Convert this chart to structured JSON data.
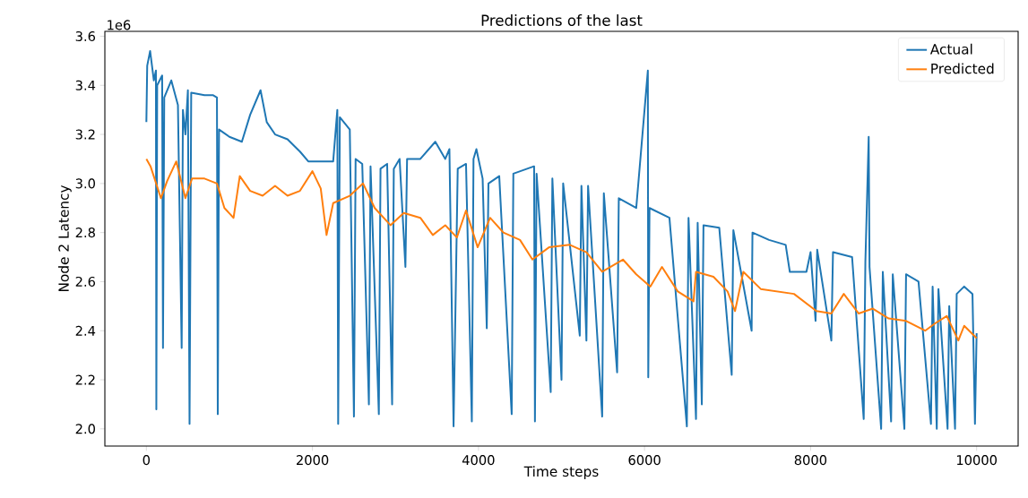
{
  "chart_data": {
    "type": "line",
    "title": "Predictions of the last",
    "xlabel": "Time steps",
    "ylabel": "Node 2 Latency",
    "annotations": [
      "1e6"
    ],
    "xlim": [
      -500,
      10500
    ],
    "ylim": [
      1.93,
      3.62
    ],
    "xticks": [
      0,
      2000,
      4000,
      6000,
      8000,
      10000
    ],
    "yticks": [
      {
        "value": 2.0,
        "label": "2.0"
      },
      {
        "value": 2.2,
        "label": "2.2"
      },
      {
        "value": 2.4,
        "label": "2.4"
      },
      {
        "value": 2.6,
        "label": "2.6"
      },
      {
        "value": 2.8,
        "label": "2.8"
      },
      {
        "value": 3.0,
        "label": "3.0"
      },
      {
        "value": 3.2,
        "label": "3.2"
      },
      {
        "value": 3.4,
        "label": "3.4"
      },
      {
        "value": 3.6,
        "label": "3.6"
      }
    ],
    "legend": "top right",
    "grid": false,
    "series": [
      {
        "name": "Actual",
        "color": "#1f77b4",
        "x": [
          0,
          10,
          45,
          90,
          115,
          120,
          130,
          190,
          200,
          215,
          300,
          380,
          425,
          440,
          470,
          500,
          520,
          540,
          700,
          800,
          850,
          860,
          875,
          1000,
          1150,
          1250,
          1375,
          1450,
          1550,
          1700,
          1850,
          1950,
          2100,
          2250,
          2300,
          2310,
          2330,
          2450,
          2500,
          2520,
          2600,
          2680,
          2700,
          2800,
          2820,
          2900,
          2960,
          2980,
          3050,
          3120,
          3140,
          3300,
          3480,
          3600,
          3650,
          3700,
          3750,
          3850,
          3920,
          3940,
          3975,
          4050,
          4100,
          4120,
          4250,
          4400,
          4420,
          4670,
          4680,
          4700,
          4870,
          4890,
          5000,
          5020,
          5220,
          5240,
          5300,
          5320,
          5490,
          5510,
          5670,
          5690,
          5900,
          6040,
          6045,
          6060,
          6300,
          6510,
          6530,
          6620,
          6640,
          6690,
          6710,
          6900,
          7050,
          7070,
          7290,
          7300,
          7500,
          7700,
          7750,
          7950,
          8000,
          8060,
          8080,
          8250,
          8270,
          8500,
          8640,
          8660,
          8700,
          8710,
          8850,
          8870,
          8970,
          8990,
          9130,
          9150,
          9300,
          9450,
          9470,
          9520,
          9540,
          9650,
          9670,
          9740,
          9760,
          9850,
          9950,
          9980,
          10000
        ],
        "values": [
          3.25,
          3.48,
          3.54,
          3.42,
          3.46,
          2.08,
          3.4,
          3.44,
          2.33,
          3.35,
          3.42,
          3.32,
          2.33,
          3.3,
          3.2,
          3.38,
          2.02,
          3.37,
          3.36,
          3.36,
          3.35,
          2.06,
          3.22,
          3.19,
          3.17,
          3.28,
          3.38,
          3.25,
          3.2,
          3.18,
          3.13,
          3.09,
          3.09,
          3.09,
          3.3,
          2.02,
          3.27,
          3.22,
          2.05,
          3.1,
          3.08,
          2.1,
          3.07,
          2.06,
          3.06,
          3.08,
          2.1,
          3.06,
          3.1,
          2.66,
          3.1,
          3.1,
          3.17,
          3.1,
          3.14,
          2.01,
          3.06,
          3.08,
          2.03,
          3.1,
          3.14,
          3.02,
          2.41,
          3.0,
          3.03,
          2.06,
          3.04,
          3.07,
          2.03,
          3.04,
          2.15,
          3.02,
          2.2,
          3.0,
          2.38,
          2.99,
          2.36,
          2.99,
          2.05,
          2.96,
          2.23,
          2.94,
          2.9,
          3.46,
          2.21,
          2.9,
          2.86,
          2.01,
          2.86,
          2.04,
          2.84,
          2.1,
          2.83,
          2.82,
          2.22,
          2.81,
          2.4,
          2.8,
          2.77,
          2.75,
          2.64,
          2.64,
          2.72,
          2.44,
          2.73,
          2.36,
          2.72,
          2.7,
          2.04,
          2.68,
          3.19,
          2.66,
          2.0,
          2.64,
          2.03,
          2.63,
          2.0,
          2.63,
          2.6,
          2.02,
          2.58,
          2.0,
          2.57,
          2.0,
          2.5,
          2.0,
          2.55,
          2.58,
          2.55,
          2.02,
          2.39
        ]
      },
      {
        "name": "Predicted",
        "color": "#ff7f0e",
        "x": [
          0,
          50,
          175,
          250,
          360,
          470,
          550,
          700,
          850,
          940,
          1050,
          1125,
          1250,
          1400,
          1550,
          1700,
          1850,
          2000,
          2100,
          2170,
          2250,
          2450,
          2610,
          2750,
          2940,
          3100,
          3300,
          3450,
          3600,
          3740,
          3850,
          3990,
          4140,
          4300,
          4500,
          4650,
          4850,
          5100,
          5300,
          5490,
          5740,
          5900,
          6070,
          6210,
          6400,
          6590,
          6620,
          6830,
          7000,
          7090,
          7190,
          7400,
          7600,
          7800,
          8070,
          8250,
          8400,
          8580,
          8750,
          8940,
          9150,
          9380,
          9500,
          9640,
          9780,
          9850,
          10000
        ],
        "values": [
          3.1,
          3.07,
          2.94,
          3.01,
          3.09,
          2.94,
          3.02,
          3.02,
          3.0,
          2.9,
          2.86,
          3.03,
          2.97,
          2.95,
          2.99,
          2.95,
          2.97,
          3.05,
          2.98,
          2.79,
          2.92,
          2.95,
          3.0,
          2.9,
          2.83,
          2.88,
          2.86,
          2.79,
          2.83,
          2.78,
          2.89,
          2.74,
          2.86,
          2.8,
          2.77,
          2.69,
          2.74,
          2.75,
          2.72,
          2.64,
          2.69,
          2.63,
          2.58,
          2.66,
          2.56,
          2.52,
          2.64,
          2.62,
          2.56,
          2.48,
          2.64,
          2.57,
          2.56,
          2.55,
          2.48,
          2.47,
          2.55,
          2.47,
          2.49,
          2.45,
          2.44,
          2.4,
          2.43,
          2.46,
          2.36,
          2.42,
          2.37
        ]
      }
    ]
  }
}
